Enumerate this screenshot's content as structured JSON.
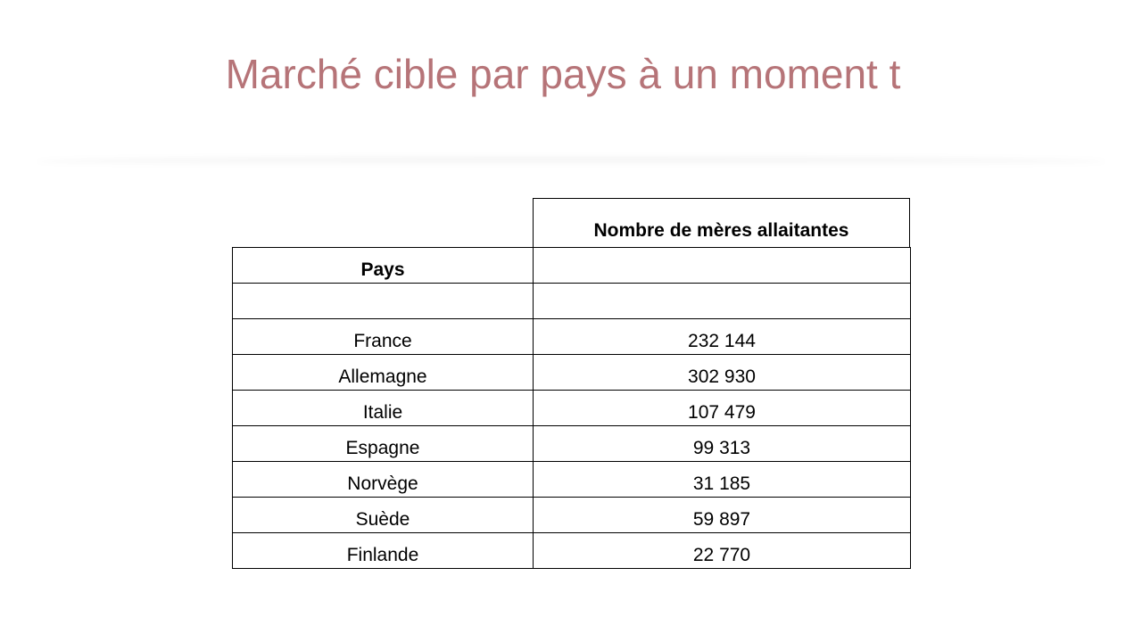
{
  "slide": {
    "title": "Marché cible par pays à un moment t"
  },
  "table": {
    "header_value": "Nombre de mères allaitantes",
    "header_country": "Pays",
    "rows": [
      {
        "country": "France",
        "value": "232 144"
      },
      {
        "country": "Allemagne",
        "value": "302 930"
      },
      {
        "country": "Italie",
        "value": "107 479"
      },
      {
        "country": "Espagne",
        "value": "99 313"
      },
      {
        "country": "Norvège",
        "value": "31 185"
      },
      {
        "country": "Suède",
        "value": "59 897"
      },
      {
        "country": "Finlande",
        "value": "22 770"
      }
    ]
  },
  "colors": {
    "title": "#b67478",
    "border": "#000000"
  }
}
